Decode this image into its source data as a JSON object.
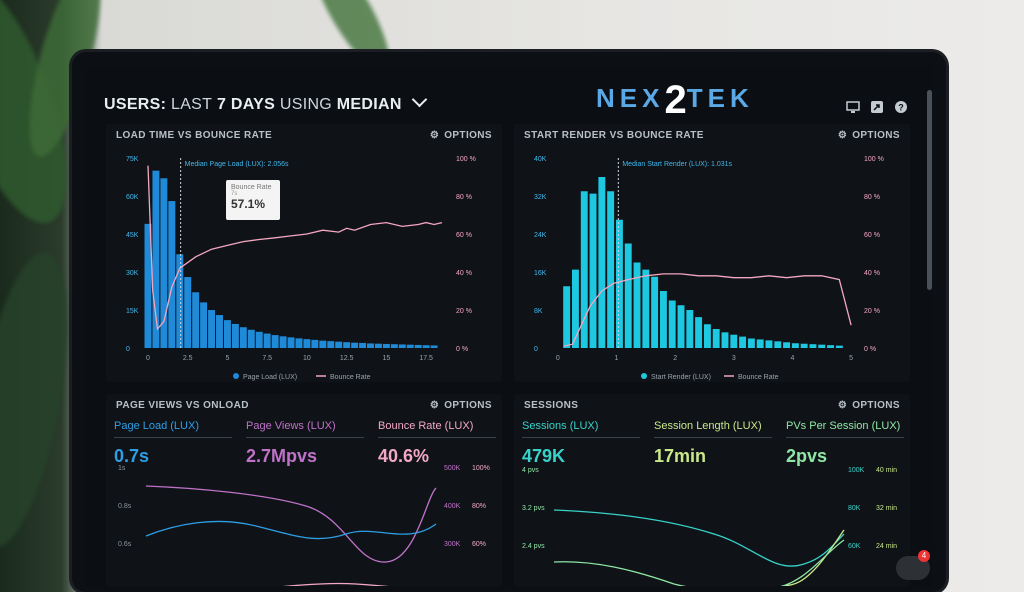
{
  "header": {
    "prefix": "USERS:",
    "middle": "LAST",
    "days": "7 DAYS",
    "using": "USING",
    "median": "MEDIAN"
  },
  "logo": {
    "left": "NEX",
    "two": "2",
    "right": "TEK"
  },
  "top_icons": [
    "monitor-icon",
    "share-icon",
    "help-icon"
  ],
  "panels": {
    "load": {
      "title": "LOAD TIME VS BOUNCE RATE",
      "options": "OPTIONS",
      "median_label": "Median Page Load (LUX): 2.056s",
      "tooltip": {
        "title": "Bounce Rate",
        "sub": "7s",
        "value": "57.1%"
      },
      "legend": [
        "Page Load (LUX)",
        "Bounce Rate"
      ]
    },
    "render": {
      "title": "START RENDER VS BOUNCE RATE",
      "options": "OPTIONS",
      "median_label": "Median Start Render (LUX): 1.031s",
      "legend": [
        "Start Render (LUX)",
        "Bounce Rate"
      ]
    },
    "pageviews": {
      "title": "PAGE VIEWS VS ONLOAD",
      "options": "OPTIONS",
      "stats": [
        {
          "label": "Page Load (LUX)",
          "value": "0.7s",
          "color": "#2e9ee6"
        },
        {
          "label": "Page Views (LUX)",
          "value": "2.7Mpvs",
          "color": "#c072c9"
        },
        {
          "label": "Bounce Rate (LUX)",
          "value": "40.6%",
          "color": "#f3a8c5"
        }
      ],
      "y_left": [
        "1s",
        "0.8s",
        "0.6s"
      ],
      "y_mid": [
        "500K",
        "400K",
        "300K"
      ],
      "y_right": [
        "100%",
        "80%",
        "60%"
      ]
    },
    "sessions": {
      "title": "SESSIONS",
      "options": "OPTIONS",
      "stats": [
        {
          "label": "Sessions (LUX)",
          "value": "479K",
          "color": "#37d3c9"
        },
        {
          "label": "Session Length (LUX)",
          "value": "17min",
          "color": "#c9e88a"
        },
        {
          "label": "PVs Per Session (LUX)",
          "value": "2pvs",
          "color": "#8fe6a4"
        }
      ],
      "y_left": [
        "4 pvs",
        "3.2 pvs",
        "2.4 pvs"
      ],
      "y_mid": [
        "100K",
        "80K",
        "60K"
      ],
      "y_right": [
        "40 min",
        "32 min",
        "24 min"
      ]
    }
  },
  "chart_data": [
    {
      "type": "bar",
      "title": "LOAD TIME VS BOUNCE RATE",
      "x_ticks": [
        "0",
        "2.5",
        "5",
        "7.5",
        "10",
        "12.5",
        "15",
        "17.5"
      ],
      "y_left_ticks": [
        "75K",
        "60K",
        "45K",
        "30K",
        "15K",
        "0"
      ],
      "y_right_ticks": [
        "100 %",
        "80 %",
        "60 %",
        "40 %",
        "20 %",
        "0 %"
      ],
      "ylim": [
        0,
        75000
      ],
      "y2lim": [
        0,
        100
      ],
      "xlim": [
        -0.25,
        18.75
      ],
      "bar_width": 0.5,
      "series": [
        {
          "name": "Page Load (LUX)",
          "color": "#1f8ad8",
          "x": [
            0,
            0.5,
            1,
            1.5,
            2,
            2.5,
            3,
            3.5,
            4,
            4.5,
            5,
            5.5,
            6,
            6.5,
            7,
            7.5,
            8,
            8.5,
            9,
            9.5,
            10,
            10.5,
            11,
            11.5,
            12,
            12.5,
            13,
            13.5,
            14,
            14.5,
            15,
            15.5,
            16,
            16.5,
            17,
            17.5,
            18
          ],
          "values": [
            49000,
            70000,
            67000,
            58000,
            37000,
            28000,
            22000,
            18000,
            15000,
            13000,
            11000,
            9500,
            8200,
            7200,
            6400,
            5700,
            5100,
            4600,
            4200,
            3800,
            3500,
            3200,
            2900,
            2700,
            2500,
            2300,
            2100,
            2000,
            1800,
            1700,
            1600,
            1500,
            1400,
            1300,
            1200,
            1100,
            1000
          ]
        },
        {
          "name": "Bounce Rate",
          "color": "#f4a6c0",
          "axis": "right",
          "x": [
            0,
            0.3,
            0.6,
            1,
            1.5,
            2,
            3,
            4,
            5,
            6,
            7,
            8,
            9,
            10,
            11,
            12,
            12.5,
            13,
            14,
            15,
            16,
            17,
            17.5,
            18,
            18.5
          ],
          "values": [
            96,
            30,
            10,
            14,
            32,
            42,
            48,
            52,
            54,
            56,
            57.1,
            58,
            59,
            60,
            62,
            61,
            63,
            62,
            65,
            66,
            64,
            65,
            66,
            65,
            66
          ]
        }
      ]
    },
    {
      "type": "bar",
      "title": "START RENDER VS BOUNCE RATE",
      "x_ticks": [
        "0",
        "1",
        "2",
        "3",
        "4",
        "5"
      ],
      "y_left_ticks": [
        "40K",
        "32K",
        "24K",
        "16K",
        "8K",
        "0"
      ],
      "y_right_ticks": [
        "100 %",
        "80 %",
        "60 %",
        "40 %",
        "20 %",
        "0 %"
      ],
      "ylim": [
        0,
        40000
      ],
      "y2lim": [
        0,
        100
      ],
      "xlim": [
        -0.1,
        5.05
      ],
      "bar_width": 0.135,
      "series": [
        {
          "name": "Start Render (LUX)",
          "color": "#1ec8e0",
          "x": [
            0.15,
            0.3,
            0.45,
            0.6,
            0.75,
            0.9,
            1.05,
            1.2,
            1.35,
            1.5,
            1.65,
            1.8,
            1.95,
            2.1,
            2.25,
            2.4,
            2.55,
            2.7,
            2.85,
            3,
            3.15,
            3.3,
            3.45,
            3.6,
            3.75,
            3.9,
            4.05,
            4.2,
            4.35,
            4.5,
            4.65,
            4.8
          ],
          "values": [
            13000,
            16500,
            33000,
            32500,
            36000,
            33000,
            27000,
            22000,
            18000,
            16500,
            15000,
            12000,
            10000,
            9000,
            8000,
            6500,
            5000,
            4000,
            3300,
            2800,
            2400,
            2000,
            1800,
            1600,
            1400,
            1200,
            1000,
            900,
            800,
            700,
            600,
            500
          ]
        },
        {
          "name": "Bounce Rate",
          "color": "#f4a6c0",
          "axis": "right",
          "x": [
            0.1,
            0.25,
            0.4,
            0.55,
            0.75,
            0.95,
            1.2,
            1.5,
            1.8,
            2.1,
            2.4,
            2.7,
            3,
            3.3,
            3.6,
            3.9,
            4.2,
            4.5,
            4.8,
            5.0
          ],
          "values": [
            1,
            2,
            12,
            22,
            30,
            34,
            36,
            38,
            39,
            39,
            38,
            38,
            37,
            37,
            38,
            37,
            38,
            38,
            36,
            12
          ]
        }
      ]
    }
  ]
}
